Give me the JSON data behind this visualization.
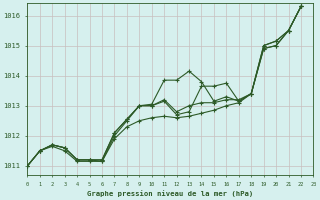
{
  "title": "",
  "xlabel": "Graphe pression niveau de la mer (hPa)",
  "ylabel": "",
  "bg_color": "#d6f0ee",
  "grid_color": "#c8bebe",
  "line_color": "#2d5a27",
  "marker_color": "#2d5a27",
  "xlim": [
    0,
    23
  ],
  "ylim": [
    1010.7,
    1016.4
  ],
  "yticks": [
    1011,
    1012,
    1013,
    1014,
    1015,
    1016
  ],
  "xticks": [
    0,
    1,
    2,
    3,
    4,
    5,
    6,
    7,
    8,
    9,
    10,
    11,
    12,
    13,
    14,
    15,
    16,
    17,
    18,
    19,
    20,
    21,
    22,
    23
  ],
  "series": [
    [
      1011.0,
      1011.5,
      1011.7,
      1011.6,
      1011.2,
      1011.2,
      1011.2,
      1012.1,
      1012.55,
      1013.0,
      1013.05,
      1013.85,
      1013.85,
      1014.15,
      1013.8,
      1013.15,
      1013.3,
      1013.15,
      1013.4,
      1014.9,
      1015.0,
      1015.5,
      1016.3
    ],
    [
      1011.0,
      1011.5,
      1011.7,
      1011.6,
      1011.2,
      1011.2,
      1011.2,
      1012.1,
      1012.55,
      1013.0,
      1013.0,
      1013.2,
      1012.8,
      1013.0,
      1013.1,
      1013.1,
      1013.2,
      1013.2,
      1013.4,
      1014.9,
      1015.0,
      1015.5,
      1016.3
    ],
    [
      1011.0,
      1011.5,
      1011.7,
      1011.6,
      1011.2,
      1011.2,
      1011.15,
      1012.0,
      1012.5,
      1013.0,
      1013.0,
      1013.15,
      1012.7,
      1012.8,
      1013.65,
      1013.65,
      1013.75,
      1013.15,
      1013.4,
      1015.0,
      1015.15,
      1015.5,
      1016.3
    ],
    [
      1011.0,
      1011.5,
      1011.65,
      1011.5,
      1011.15,
      1011.15,
      1011.15,
      1011.9,
      1012.3,
      1012.5,
      1012.6,
      1012.65,
      1012.6,
      1012.65,
      1012.75,
      1012.85,
      1013.0,
      1013.1,
      1013.4,
      1015.0,
      1015.15,
      1015.5,
      1016.3
    ]
  ],
  "x_start": 0
}
